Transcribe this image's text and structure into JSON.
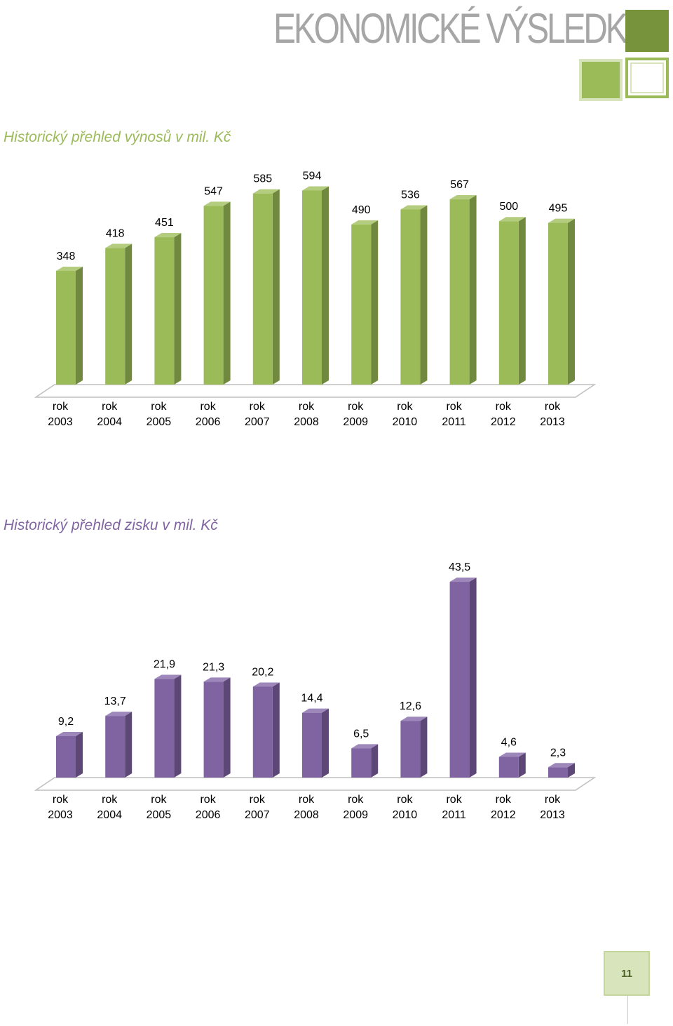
{
  "header": {
    "title": "EKONOMICKÉ VÝSLEDKY"
  },
  "sections": {
    "revenue_title": "Historický přehled výnosů v mil. Kč",
    "profit_title": "Historický přehled zisku v mil. Kč"
  },
  "page": {
    "number": "11"
  },
  "colors": {
    "revenue_bar": "#9bbb59",
    "revenue_bar_side": "#71893f",
    "revenue_bar_top": "#b3cc7e",
    "profit_bar": "#8064a2",
    "profit_bar_side": "#5c4776",
    "profit_bar_top": "#9e87bb"
  },
  "chart_data": [
    {
      "type": "bar",
      "title": "Historický přehled výnosů v mil. Kč",
      "category_prefix": "rok",
      "categories": [
        "2003",
        "2004",
        "2005",
        "2006",
        "2007",
        "2008",
        "2009",
        "2010",
        "2011",
        "2012",
        "2013"
      ],
      "values": [
        348,
        418,
        451,
        547,
        585,
        594,
        490,
        536,
        567,
        500,
        495
      ],
      "labels": [
        "348",
        "418",
        "451",
        "547",
        "585",
        "594",
        "490",
        "536",
        "567",
        "500",
        "495"
      ],
      "xlabel": "",
      "ylabel": "",
      "ylim": [
        0,
        600
      ]
    },
    {
      "type": "bar",
      "title": "Historický přehled zisku v mil. Kč",
      "category_prefix": "rok",
      "categories": [
        "2003",
        "2004",
        "2005",
        "2006",
        "2007",
        "2008",
        "2009",
        "2010",
        "2011",
        "2012",
        "2013"
      ],
      "values": [
        9.2,
        13.7,
        21.9,
        21.3,
        20.2,
        14.4,
        6.5,
        12.6,
        43.5,
        4.6,
        2.3
      ],
      "labels": [
        "9,2",
        "13,7",
        "21,9",
        "21,3",
        "20,2",
        "14,4",
        "6,5",
        "12,6",
        "43,5",
        "4,6",
        "2,3"
      ],
      "xlabel": "",
      "ylabel": "",
      "ylim": [
        0,
        45
      ]
    }
  ]
}
